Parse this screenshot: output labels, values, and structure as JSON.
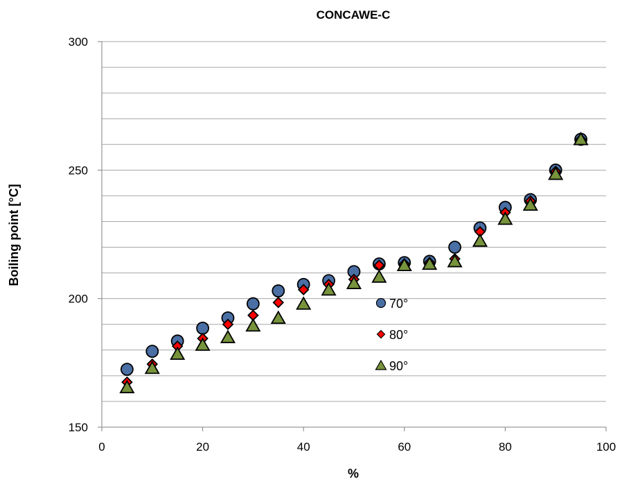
{
  "chart_data": {
    "type": "scatter",
    "title": "CONCAWE-C",
    "xlabel": "%",
    "ylabel": "Boiling point [°C]",
    "xlim": [
      0,
      100
    ],
    "ylim": [
      150,
      300
    ],
    "x_ticks": [
      0,
      20,
      40,
      60,
      80,
      100
    ],
    "y_ticks": [
      150,
      200,
      250,
      300
    ],
    "y_minor_step": 10,
    "grid": true,
    "legend": "inside-center",
    "x": [
      5,
      10,
      15,
      20,
      25,
      30,
      35,
      40,
      45,
      50,
      55,
      60,
      65,
      70,
      75,
      80,
      85,
      90,
      95
    ],
    "series": [
      {
        "name": "70°",
        "marker": "circle",
        "color": "#4a6fa5",
        "values": [
          172.5,
          179.5,
          183.5,
          188.5,
          192.5,
          198,
          203,
          205.5,
          207,
          210.5,
          213.5,
          214,
          214.5,
          220,
          227.5,
          235.5,
          238.5,
          250,
          262
        ]
      },
      {
        "name": "80°",
        "marker": "diamond",
        "color": "#ff0000",
        "values": [
          167.5,
          174.5,
          181.5,
          184.5,
          190,
          193.5,
          198.5,
          203.5,
          205.5,
          207.5,
          213,
          213.5,
          214,
          215.5,
          226,
          233.5,
          238,
          249.5,
          262
        ]
      },
      {
        "name": "90°",
        "marker": "triangle",
        "color": "#77933c",
        "values": [
          165.5,
          173,
          178.5,
          182,
          185,
          189.5,
          192.5,
          198,
          203.5,
          206,
          208.5,
          213,
          213.5,
          214.5,
          222.5,
          231,
          236.5,
          248.5,
          262
        ]
      }
    ]
  }
}
